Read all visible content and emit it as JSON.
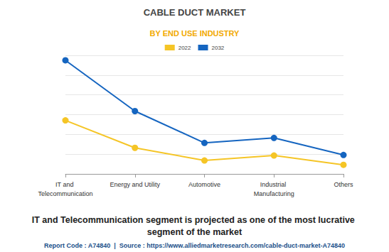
{
  "chart_data": {
    "type": "line",
    "title": "CABLE DUCT MARKET",
    "subtitle": "BY END USE INDUSTRY",
    "annotations": [
      "IT and Telecommunication segment is projected as one of the most lucrative segment of the market",
      "Report Code : A74840  |  Source : https://www.alliedmarketresearch.com/cable-duct-market-A74840"
    ],
    "categories": [
      "IT and Telecommunication",
      "Energy and Utility",
      "Automotive",
      "Industrial Manufacturing",
      "Others"
    ],
    "series": [
      {
        "name": "2022",
        "color": "#f5c526",
        "values": [
          2.71,
          1.32,
          0.68,
          0.93,
          0.46
        ]
      },
      {
        "name": "2032",
        "color": "#1565c0",
        "values": [
          5.75,
          3.18,
          1.57,
          1.82,
          0.96
        ]
      }
    ],
    "ylim": [
      0,
      6
    ],
    "yticks": [
      0,
      1,
      2,
      3,
      4,
      5,
      6
    ],
    "grid": true,
    "legend": "top",
    "tick_labels": "x",
    "marker": "circle"
  }
}
